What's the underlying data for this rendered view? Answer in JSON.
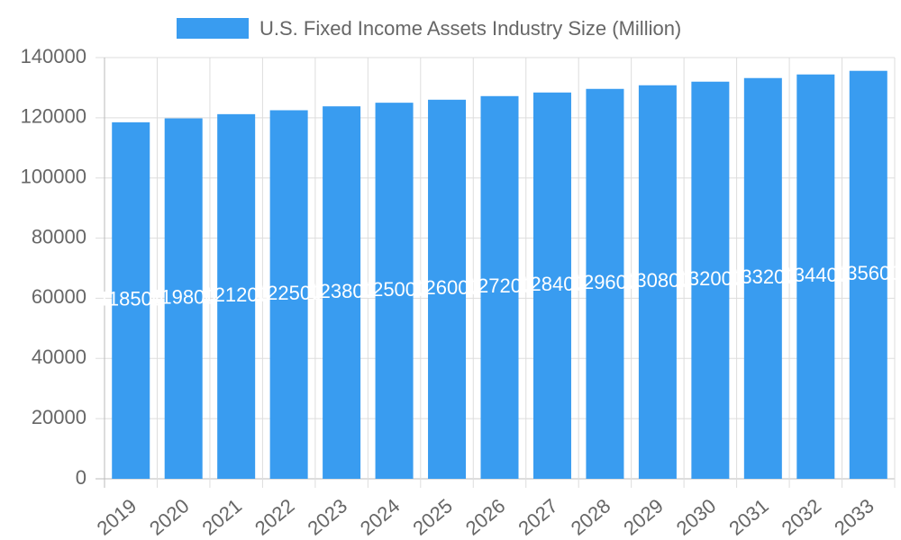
{
  "chart_data": {
    "type": "bar",
    "series": [
      {
        "name": "U.S. Fixed Income Assets Industry Size (Million)",
        "color": "#399cf0",
        "values": [
          118500,
          119800,
          121200,
          122500,
          123800,
          125000,
          126000,
          127200,
          128400,
          129600,
          130800,
          132000,
          133200,
          134400,
          135600
        ]
      }
    ],
    "categories": [
      "2019",
      "2020",
      "2021",
      "2022",
      "2023",
      "2024",
      "2025",
      "2026",
      "2027",
      "2028",
      "2029",
      "2030",
      "2031",
      "2032",
      "2033"
    ],
    "ylim": [
      0,
      140000
    ],
    "yticks": [
      0,
      20000,
      40000,
      60000,
      80000,
      100000,
      120000,
      140000
    ],
    "grid": true,
    "legend": "top"
  }
}
